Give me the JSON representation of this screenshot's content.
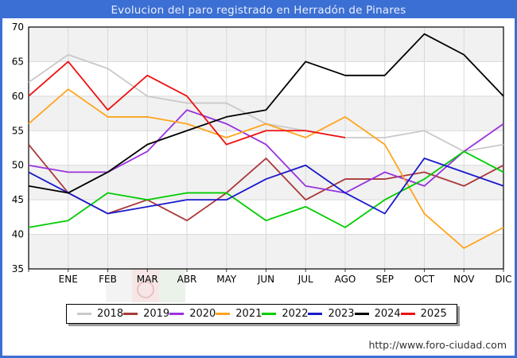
{
  "footer": {
    "url": "http://www.foro-ciudad.com"
  },
  "colors": {
    "frame": "#3b6fd3",
    "title_text": "#e9eefb",
    "plot_band": "#f1f1f1",
    "grid": "#d9d9d9",
    "plot_border": "#000000",
    "tick": "#444444",
    "axis_label": "#000000"
  },
  "chart_data": {
    "type": "line",
    "title": "Evolucion del paro registrado en Herradón de Pinares",
    "categories": [
      "",
      "ENE",
      "FEB",
      "MAR",
      "ABR",
      "MAY",
      "JUN",
      "JUL",
      "AGO",
      "SEP",
      "OCT",
      "NOV",
      "DIC"
    ],
    "xlabel": "",
    "ylabel": "",
    "ylim": [
      35,
      70
    ],
    "y_ticks": [
      35,
      40,
      45,
      50,
      55,
      60,
      65,
      70
    ],
    "grid": true,
    "legend_position": "bottom",
    "series": [
      {
        "name": "2018",
        "color": "#c9c9c9",
        "values": [
          62,
          66,
          64,
          60,
          59,
          59,
          56,
          55,
          54,
          54,
          55,
          52,
          53
        ]
      },
      {
        "name": "2019",
        "color": "#aa3939",
        "values": [
          53,
          46,
          43,
          45,
          42,
          46,
          51,
          45,
          48,
          48,
          49,
          47,
          50
        ]
      },
      {
        "name": "2020",
        "color": "#9933dd",
        "values": [
          50,
          49,
          49,
          52,
          58,
          56,
          53,
          47,
          46,
          49,
          47,
          52,
          56
        ]
      },
      {
        "name": "2021",
        "color": "#ffa51e",
        "values": [
          56,
          61,
          57,
          57,
          56,
          54,
          56,
          54,
          57,
          53,
          43,
          38,
          41
        ]
      },
      {
        "name": "2022",
        "color": "#00cc00",
        "values": [
          41,
          42,
          46,
          45,
          46,
          46,
          42,
          44,
          41,
          45,
          48,
          52,
          49
        ]
      },
      {
        "name": "2023",
        "color": "#1a1acc",
        "values": [
          49,
          46,
          43,
          44,
          45,
          45,
          48,
          50,
          46,
          43,
          51,
          49,
          47
        ]
      },
      {
        "name": "2024",
        "color": "#000000",
        "values": [
          47,
          46,
          49,
          53,
          55,
          57,
          58,
          65,
          63,
          63,
          69,
          66,
          60
        ]
      },
      {
        "name": "2025",
        "color": "#ee1111",
        "values": [
          60,
          65,
          58,
          63,
          60,
          53,
          55,
          55,
          54
        ]
      }
    ]
  }
}
